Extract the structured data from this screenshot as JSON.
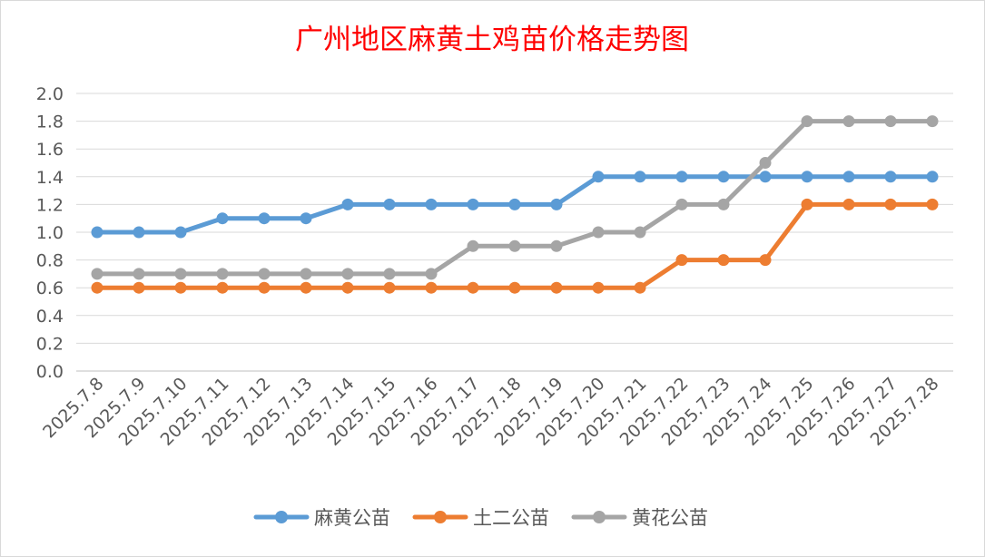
{
  "chart_data": {
    "type": "line",
    "title": "广州地区麻黄土鸡苗价格走势图",
    "title_color": "#ff0000",
    "xlabel": "",
    "ylabel": "",
    "ylim": [
      0,
      2.0
    ],
    "y_ticks": [
      "0.0",
      "0.2",
      "0.4",
      "0.6",
      "0.8",
      "1.0",
      "1.2",
      "1.4",
      "1.6",
      "1.8",
      "2.0"
    ],
    "grid": "horizontal",
    "legend_position": "bottom",
    "categories": [
      "2025.7.8",
      "2025.7.9",
      "2025.7.10",
      "2025.7.11",
      "2025.7.12",
      "2025.7.13",
      "2025.7.14",
      "2025.7.15",
      "2025.7.16",
      "2025.7.17",
      "2025.7.18",
      "2025.7.19",
      "2025.7.20",
      "2025.7.21",
      "2025.7.22",
      "2025.7.23",
      "2025.7.24",
      "2025.7.25",
      "2025.7.26",
      "2025.7.27",
      "2025.7.28"
    ],
    "series": [
      {
        "name": "麻黄公苗",
        "color": "#5b9bd5",
        "values": [
          1.0,
          1.0,
          1.0,
          1.1,
          1.1,
          1.1,
          1.2,
          1.2,
          1.2,
          1.2,
          1.2,
          1.2,
          1.4,
          1.4,
          1.4,
          1.4,
          1.4,
          1.4,
          1.4,
          1.4,
          1.4
        ]
      },
      {
        "name": "土二公苗",
        "color": "#ed7d31",
        "values": [
          0.6,
          0.6,
          0.6,
          0.6,
          0.6,
          0.6,
          0.6,
          0.6,
          0.6,
          0.6,
          0.6,
          0.6,
          0.6,
          0.6,
          0.8,
          0.8,
          0.8,
          1.2,
          1.2,
          1.2,
          1.2
        ]
      },
      {
        "name": "黄花公苗",
        "color": "#a5a5a5",
        "values": [
          0.7,
          0.7,
          0.7,
          0.7,
          0.7,
          0.7,
          0.7,
          0.7,
          0.7,
          0.9,
          0.9,
          0.9,
          1.0,
          1.0,
          1.2,
          1.2,
          1.5,
          1.8,
          1.8,
          1.8,
          1.8
        ]
      }
    ]
  }
}
